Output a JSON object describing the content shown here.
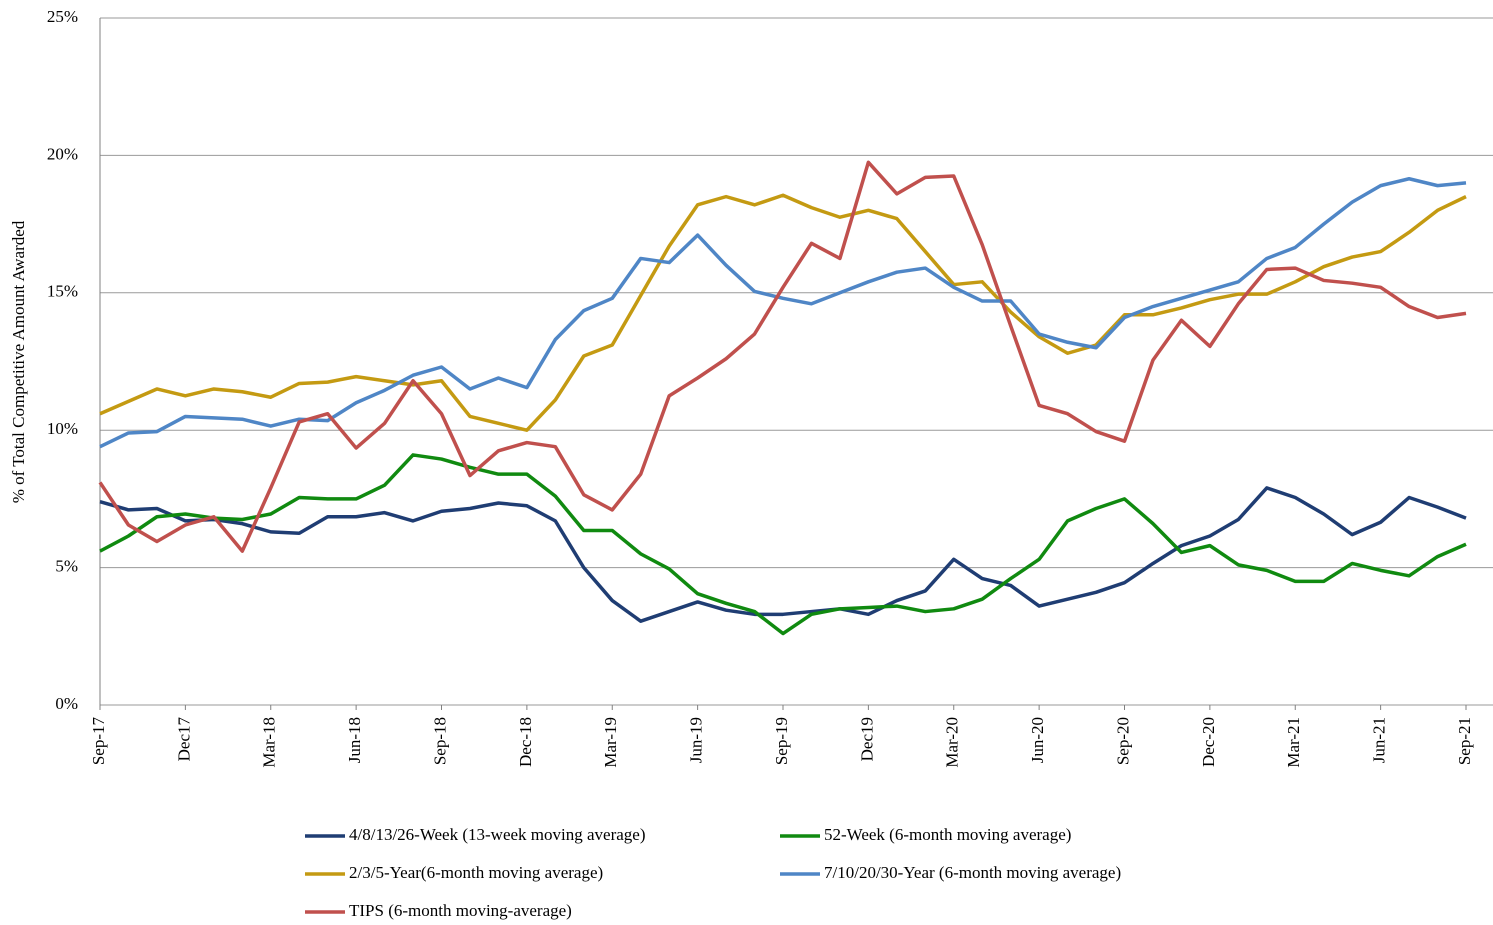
{
  "chart_data": {
    "type": "line",
    "y_label": "% of Total Competitive  Amount Awarded",
    "categories": [
      "Sep-17",
      null,
      null,
      "Dec17",
      null,
      null,
      "Mar-18",
      null,
      null,
      "Jun-18",
      null,
      null,
      "Sep-18",
      null,
      null,
      "Dec-18",
      null,
      null,
      "Mar-19",
      null,
      null,
      "Jun-19",
      null,
      null,
      "Sep-19",
      null,
      null,
      "Dec19",
      null,
      null,
      "Mar-20",
      null,
      null,
      "Jun-20",
      null,
      null,
      "Sep-20",
      null,
      null,
      "Dec-20",
      null,
      null,
      "Mar-21",
      null,
      null,
      "Jun-21",
      null,
      null,
      "Sep-21"
    ],
    "ylim": [
      0,
      25
    ],
    "yticks": [
      {
        "value": 0,
        "label": "0%"
      },
      {
        "value": 5,
        "label": "5%"
      },
      {
        "value": 10,
        "label": "10%"
      },
      {
        "value": 15,
        "label": "15%"
      },
      {
        "value": 20,
        "label": "20%"
      },
      {
        "value": 25,
        "label": "25%"
      }
    ],
    "grid": true,
    "series": [
      {
        "name": "4/8/13/26-Week (13-week moving average)",
        "color": "#1f3d73",
        "values": [
          7.4,
          7.1,
          7.15,
          6.7,
          6.75,
          6.6,
          6.3,
          6.25,
          6.85,
          6.85,
          7.0,
          6.7,
          7.05,
          7.15,
          7.35,
          7.25,
          6.7,
          5.0,
          3.8,
          3.05,
          3.4,
          3.75,
          3.45,
          3.3,
          3.3,
          3.4,
          3.5,
          3.3,
          3.8,
          4.15,
          5.3,
          4.6,
          4.35,
          3.6,
          3.85,
          4.1,
          4.45,
          5.15,
          5.8,
          6.15,
          6.75,
          7.9,
          7.55,
          6.95,
          6.2,
          6.65,
          7.55,
          7.2,
          6.8
        ]
      },
      {
        "name": "52-Week (6-month moving average)",
        "color": "#108a10",
        "values": [
          5.6,
          6.15,
          6.85,
          6.95,
          6.8,
          6.75,
          6.95,
          7.55,
          7.5,
          7.5,
          8.0,
          9.1,
          8.95,
          8.65,
          8.4,
          8.4,
          7.6,
          6.35,
          6.35,
          5.5,
          4.95,
          4.05,
          3.7,
          3.4,
          2.6,
          3.3,
          3.5,
          3.55,
          3.6,
          3.4,
          3.5,
          3.85,
          4.6,
          5.3,
          6.7,
          7.15,
          7.5,
          6.6,
          5.55,
          5.8,
          5.1,
          4.9,
          4.5,
          4.5,
          5.15,
          4.9,
          4.7,
          5.4,
          5.85
        ]
      },
      {
        "name": "2/3/5-Year(6-month moving average)",
        "color": "#c49a12",
        "values": [
          10.6,
          11.05,
          11.5,
          11.25,
          11.5,
          11.4,
          11.2,
          11.7,
          11.75,
          11.95,
          11.8,
          11.65,
          11.8,
          10.5,
          10.25,
          10.0,
          11.1,
          12.7,
          13.1,
          14.9,
          16.7,
          18.2,
          18.5,
          18.2,
          18.55,
          18.1,
          17.75,
          18.0,
          17.7,
          16.5,
          15.3,
          15.4,
          14.3,
          13.4,
          12.8,
          13.1,
          14.2,
          14.2,
          14.45,
          14.75,
          14.95,
          14.95,
          15.4,
          15.95,
          16.3,
          16.5,
          17.2,
          18.0,
          18.5
        ]
      },
      {
        "name": "7/10/20/30-Year (6-month moving average)",
        "color": "#4f86c6",
        "values": [
          9.4,
          9.9,
          9.95,
          10.5,
          10.45,
          10.4,
          10.15,
          10.4,
          10.35,
          11.0,
          11.45,
          12.0,
          12.3,
          11.5,
          11.9,
          11.55,
          13.3,
          14.35,
          14.8,
          16.25,
          16.1,
          17.1,
          16.0,
          15.05,
          14.8,
          14.6,
          15.0,
          15.4,
          15.75,
          15.9,
          15.2,
          14.7,
          14.7,
          13.5,
          13.2,
          13.0,
          14.1,
          14.5,
          14.8,
          15.1,
          15.4,
          16.25,
          16.65,
          17.5,
          18.3,
          18.9,
          19.15,
          18.9,
          19.0
        ]
      },
      {
        "name": "TIPS (6-month moving-average)",
        "color": "#c0504d",
        "values": [
          8.1,
          6.55,
          5.95,
          6.55,
          6.85,
          5.6,
          7.9,
          10.3,
          10.6,
          9.35,
          10.25,
          11.8,
          10.6,
          8.35,
          9.25,
          9.55,
          9.4,
          7.65,
          7.1,
          8.4,
          11.25,
          11.9,
          12.6,
          13.5,
          15.2,
          16.8,
          16.25,
          19.75,
          18.6,
          19.2,
          19.25,
          16.75,
          13.8,
          10.9,
          10.6,
          9.95,
          9.6,
          12.55,
          14.0,
          13.05,
          14.6,
          15.85,
          15.9,
          15.45,
          15.35,
          15.2,
          14.5,
          14.1,
          14.25
        ]
      }
    ]
  }
}
